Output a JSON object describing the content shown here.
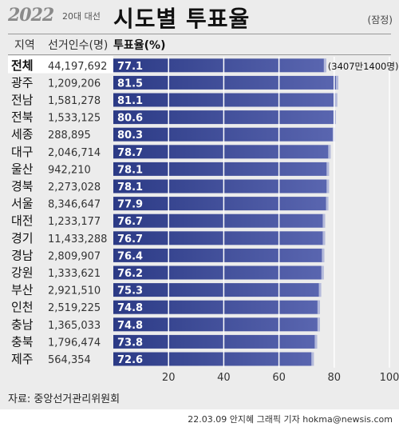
{
  "header": {
    "logo": "2022",
    "logo_sub": "20대 대선",
    "title": "시도별 투표율",
    "note": "(잠정)",
    "col_region": "지역",
    "col_voters": "선거인수(명)",
    "col_rate": "투표율(%)"
  },
  "footer": {
    "source": "자료: 중앙선거관리위원회",
    "credit": "22.03.09 안지혜 그래픽 기자 hokma@newsis.com"
  },
  "colors": {
    "bar_dark": "#2b3a85",
    "bar_light": "#5a66b0",
    "highlight_row": "#ffffff",
    "panel": "#ececec"
  },
  "chart_data": {
    "type": "bar",
    "orientation": "horizontal",
    "categories": [
      "전체",
      "광주",
      "전남",
      "전북",
      "세종",
      "대구",
      "울산",
      "경북",
      "서울",
      "대전",
      "경기",
      "경남",
      "강원",
      "부산",
      "인천",
      "충남",
      "충북",
      "제주"
    ],
    "voters": [
      "44,197,692",
      "1,209,206",
      "1,581,278",
      "1,533,125",
      "288,895",
      "2,046,714",
      "942,210",
      "2,273,028",
      "8,346,647",
      "1,233,177",
      "11,433,288",
      "2,809,907",
      "1,333,621",
      "2,921,510",
      "2,519,225",
      "1,365,033",
      "1,796,474",
      "564,354"
    ],
    "values": [
      77.1,
      81.5,
      81.1,
      80.6,
      80.3,
      78.7,
      78.1,
      78.1,
      77.9,
      76.7,
      76.7,
      76.4,
      76.2,
      75.3,
      74.8,
      74.8,
      73.8,
      72.6
    ],
    "value_labels": [
      "77.1",
      "81.5",
      "81.1",
      "80.6",
      "80.3",
      "78.7",
      "78.1",
      "78.1",
      "77.9",
      "76.7",
      "76.7",
      "76.4",
      "76.2",
      "75.3",
      "74.8",
      "74.8",
      "73.8",
      "72.6"
    ],
    "annotations": [
      {
        "category": "전체",
        "text": "(3407만1400명)"
      }
    ],
    "xlim": [
      0,
      100
    ],
    "xticks": [
      "20",
      "40",
      "60",
      "80",
      "100"
    ],
    "grid": true
  }
}
